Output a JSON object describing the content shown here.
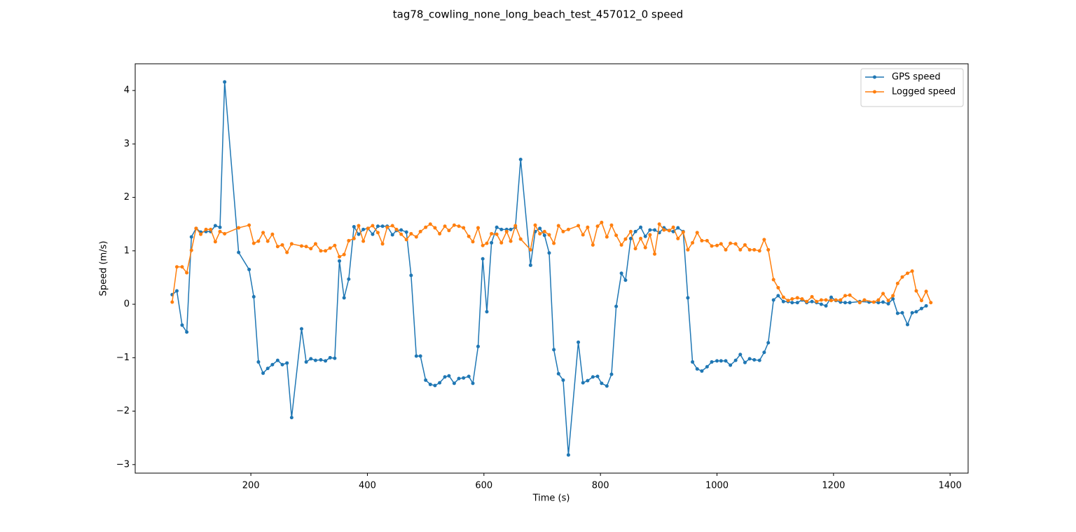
{
  "chart_data": {
    "type": "line",
    "title": "tag78_cowling_none_long_beach_test_457012_0 speed",
    "x_label": "Time (s)",
    "y_label": "Speed (m/s)",
    "xlim": [
      1.5,
      1431
    ],
    "ylim": [
      -3.16,
      4.5
    ],
    "xticks": [
      200,
      400,
      600,
      800,
      1000,
      1200,
      1400
    ],
    "yticks": [
      {
        "value": -3,
        "label": "−3"
      },
      {
        "value": -2,
        "label": "−2"
      },
      {
        "value": -1,
        "label": "−1"
      },
      0,
      1,
      2,
      3,
      4
    ],
    "legend": "upper right",
    "series": [
      {
        "name": "GPS speed",
        "color": "#1f77b4",
        "x": [
          65,
          73,
          82,
          90,
          98,
          106,
          114,
          123,
          131,
          139,
          147,
          155,
          179,
          197,
          205,
          213,
          221,
          229,
          237,
          246,
          254,
          262,
          270,
          287,
          295,
          303,
          311,
          320,
          328,
          336,
          344,
          352,
          360,
          368,
          377,
          385,
          393,
          401,
          409,
          418,
          426,
          434,
          443,
          450,
          458,
          467,
          475,
          484,
          491,
          500,
          508,
          516,
          524,
          533,
          540,
          549,
          557,
          565,
          574,
          581,
          590,
          598,
          605,
          613,
          622,
          630,
          639,
          646,
          654,
          663,
          680,
          688,
          696,
          704,
          712,
          720,
          728,
          736,
          745,
          762,
          770,
          778,
          787,
          795,
          802,
          811,
          819,
          827,
          836,
          843,
          852,
          860,
          869,
          877,
          885,
          893,
          901,
          909,
          918,
          925,
          933,
          942,
          950,
          958,
          966,
          974,
          983,
          991,
          1000,
          1007,
          1015,
          1023,
          1032,
          1040,
          1048,
          1056,
          1064,
          1073,
          1081,
          1088,
          1097,
          1105,
          1114,
          1122,
          1129,
          1138,
          1146,
          1154,
          1163,
          1171,
          1179,
          1187,
          1196,
          1204,
          1212,
          1220,
          1228,
          1245,
          1261,
          1277,
          1285,
          1294,
          1302,
          1310,
          1318,
          1327,
          1335,
          1342,
          1351,
          1359
        ],
        "values": [
          0.18,
          0.25,
          -0.39,
          -0.52,
          1.26,
          1.42,
          1.35,
          1.36,
          1.36,
          1.47,
          1.44,
          4.16,
          0.97,
          0.65,
          0.14,
          -1.08,
          -1.29,
          -1.2,
          -1.13,
          -1.05,
          -1.13,
          -1.1,
          -2.12,
          -0.46,
          -1.08,
          -1.02,
          -1.05,
          -1.04,
          -1.06,
          -1.0,
          -1.01,
          0.81,
          0.12,
          0.47,
          1.45,
          1.31,
          1.4,
          1.42,
          1.31,
          1.46,
          1.46,
          1.46,
          1.3,
          1.38,
          1.39,
          1.35,
          0.54,
          -0.97,
          -0.97,
          -1.42,
          -1.5,
          -1.52,
          -1.47,
          -1.36,
          -1.34,
          -1.48,
          -1.39,
          -1.38,
          -1.35,
          -1.48,
          -0.79,
          0.85,
          -0.14,
          1.15,
          1.44,
          1.4,
          1.4,
          1.4,
          1.44,
          2.71,
          0.73,
          1.36,
          1.42,
          1.29,
          0.96,
          -0.85,
          -1.3,
          -1.42,
          -2.82,
          -0.71,
          -1.47,
          -1.43,
          -1.36,
          -1.35,
          -1.48,
          -1.53,
          -1.31,
          -0.04,
          0.58,
          0.45,
          1.23,
          1.36,
          1.44,
          1.27,
          1.39,
          1.39,
          1.34,
          1.43,
          1.38,
          1.36,
          1.43,
          1.36,
          0.12,
          -1.08,
          -1.21,
          -1.25,
          -1.17,
          -1.08,
          -1.06,
          -1.06,
          -1.06,
          -1.14,
          -1.05,
          -0.94,
          -1.09,
          -1.02,
          -1.04,
          -1.05,
          -0.9,
          -0.72,
          0.08,
          0.16,
          0.05,
          0.05,
          0.03,
          0.03,
          0.08,
          0.03,
          0.05,
          0.03,
          0.0,
          -0.03,
          0.13,
          0.07,
          0.04,
          0.03,
          0.03,
          0.05,
          0.04,
          0.03,
          0.04,
          0.01,
          0.1,
          -0.17,
          -0.16,
          -0.38,
          -0.16,
          -0.14,
          -0.08,
          -0.03
        ]
      },
      {
        "name": "Logged speed",
        "color": "#ff7f0e",
        "x": [
          65,
          73,
          82,
          90,
          98,
          106,
          114,
          123,
          131,
          139,
          147,
          155,
          179,
          197,
          205,
          213,
          221,
          229,
          237,
          246,
          254,
          262,
          270,
          287,
          295,
          303,
          311,
          320,
          328,
          336,
          344,
          352,
          360,
          368,
          377,
          385,
          393,
          401,
          409,
          418,
          426,
          434,
          443,
          450,
          458,
          467,
          475,
          484,
          491,
          500,
          508,
          516,
          524,
          533,
          540,
          549,
          557,
          565,
          574,
          581,
          590,
          598,
          605,
          613,
          622,
          630,
          639,
          646,
          654,
          663,
          680,
          688,
          696,
          704,
          712,
          720,
          728,
          736,
          745,
          762,
          770,
          778,
          787,
          795,
          802,
          811,
          819,
          827,
          836,
          843,
          852,
          860,
          869,
          877,
          885,
          893,
          901,
          909,
          918,
          925,
          933,
          942,
          950,
          958,
          966,
          974,
          983,
          991,
          1000,
          1007,
          1015,
          1023,
          1032,
          1040,
          1048,
          1056,
          1064,
          1073,
          1081,
          1088,
          1097,
          1105,
          1114,
          1122,
          1129,
          1138,
          1146,
          1154,
          1163,
          1171,
          1179,
          1187,
          1196,
          1204,
          1212,
          1220,
          1228,
          1245,
          1253,
          1269,
          1277,
          1285,
          1294,
          1302,
          1310,
          1318,
          1327,
          1335,
          1342,
          1351,
          1359,
          1367
        ],
        "values": [
          0.04,
          0.7,
          0.7,
          0.59,
          1.01,
          1.42,
          1.31,
          1.4,
          1.4,
          1.17,
          1.36,
          1.32,
          1.43,
          1.48,
          1.14,
          1.18,
          1.34,
          1.18,
          1.31,
          1.08,
          1.11,
          0.97,
          1.13,
          1.09,
          1.08,
          1.04,
          1.13,
          1.0,
          1.0,
          1.05,
          1.1,
          0.89,
          0.93,
          1.19,
          1.23,
          1.47,
          1.18,
          1.42,
          1.47,
          1.34,
          1.13,
          1.44,
          1.47,
          1.4,
          1.31,
          1.21,
          1.32,
          1.26,
          1.36,
          1.44,
          1.5,
          1.43,
          1.32,
          1.46,
          1.38,
          1.48,
          1.46,
          1.43,
          1.27,
          1.17,
          1.43,
          1.1,
          1.14,
          1.32,
          1.31,
          1.15,
          1.36,
          1.18,
          1.47,
          1.22,
          1.02,
          1.48,
          1.32,
          1.36,
          1.3,
          1.14,
          1.47,
          1.36,
          1.4,
          1.47,
          1.3,
          1.44,
          1.11,
          1.46,
          1.53,
          1.26,
          1.48,
          1.29,
          1.11,
          1.22,
          1.36,
          1.04,
          1.23,
          1.06,
          1.3,
          0.94,
          1.5,
          1.39,
          1.38,
          1.44,
          1.23,
          1.35,
          1.02,
          1.15,
          1.34,
          1.19,
          1.19,
          1.09,
          1.1,
          1.13,
          1.02,
          1.14,
          1.13,
          1.02,
          1.11,
          1.02,
          1.02,
          1.0,
          1.21,
          1.02,
          0.46,
          0.31,
          0.13,
          0.07,
          0.1,
          0.12,
          0.1,
          0.05,
          0.14,
          0.05,
          0.08,
          0.08,
          0.07,
          0.08,
          0.08,
          0.16,
          0.17,
          0.03,
          0.08,
          0.04,
          0.08,
          0.2,
          0.07,
          0.16,
          0.39,
          0.51,
          0.58,
          0.62,
          0.25,
          0.07,
          0.24,
          0.03
        ]
      }
    ]
  }
}
